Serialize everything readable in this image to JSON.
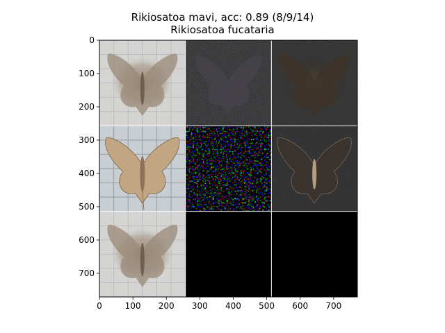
{
  "figure": {
    "title_line1": "Rikiosatoa mavi, acc: 0.89 (8/9/14)",
    "title_line2": "Rikiosatoa fucataria"
  },
  "axes": {
    "x_ticks": [
      "0",
      "100",
      "200",
      "300",
      "400",
      "500",
      "600",
      "700"
    ],
    "y_ticks": [
      "0",
      "100",
      "200",
      "300",
      "400",
      "500",
      "600",
      "700"
    ],
    "x_tick_values": [
      0,
      100,
      200,
      300,
      400,
      500,
      600,
      700
    ],
    "y_tick_values": [
      0,
      100,
      200,
      300,
      400,
      500,
      600,
      700
    ],
    "xlim": [
      0,
      771
    ],
    "ylim": [
      771,
      0
    ]
  },
  "grid": {
    "rows": 3,
    "cols": 3,
    "panels": [
      {
        "name": "panel-r1c1-moth-averaged",
        "kind": "moth-light"
      },
      {
        "name": "panel-r1c2-noise-dark",
        "kind": "noise-dark"
      },
      {
        "name": "panel-r1c3-moth-dark",
        "kind": "moth-dark"
      },
      {
        "name": "panel-r2c1-moth-specimen",
        "kind": "moth-specimen"
      },
      {
        "name": "panel-r2c2-saliency-speckle",
        "kind": "speckle"
      },
      {
        "name": "panel-r2c3-moth-masked",
        "kind": "moth-masked"
      },
      {
        "name": "panel-r3c1-moth-averaged",
        "kind": "moth-light"
      },
      {
        "name": "panel-r3c2-black",
        "kind": "black"
      },
      {
        "name": "panel-r3c3-black",
        "kind": "black"
      }
    ]
  }
}
